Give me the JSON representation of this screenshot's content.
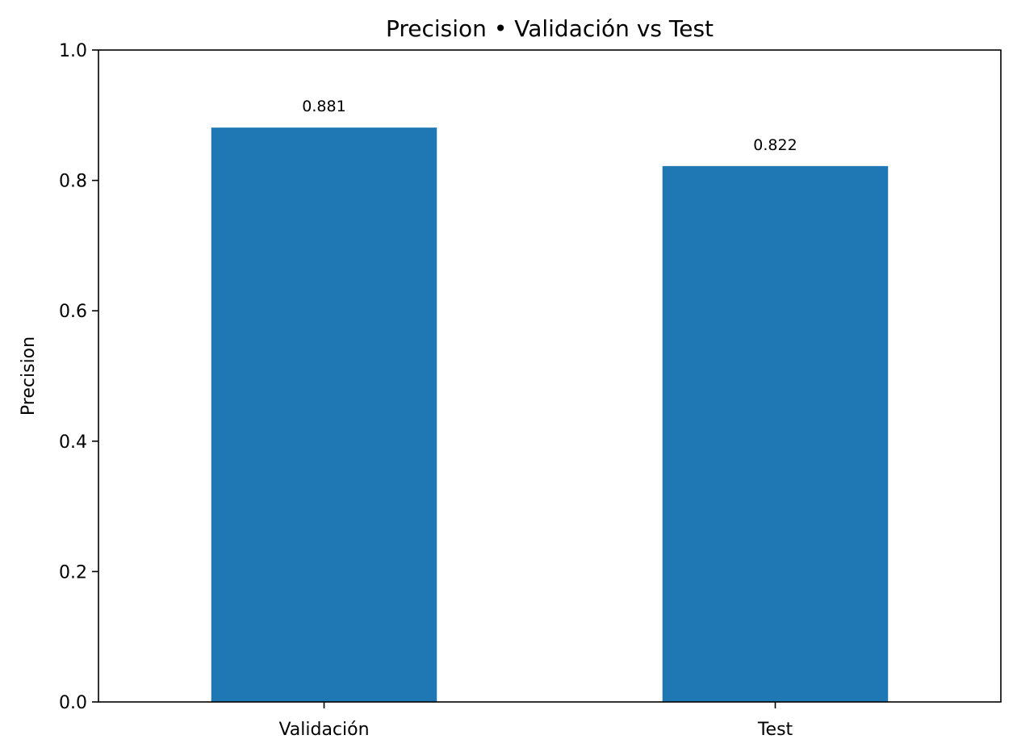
{
  "chart_data": {
    "type": "bar",
    "title": "Precision • Validación vs Test",
    "xlabel": "",
    "ylabel": "Precision",
    "categories": [
      "Validación",
      "Test"
    ],
    "values": [
      0.881,
      0.822
    ],
    "value_labels": [
      "0.881",
      "0.822"
    ],
    "ylim": [
      0,
      1
    ],
    "yticks": [
      0.0,
      0.2,
      0.4,
      0.6,
      0.8,
      1.0
    ],
    "ytick_labels": [
      "0.0",
      "0.2",
      "0.4",
      "0.6",
      "0.8",
      "1.0"
    ],
    "bar_color": "#1f77b4",
    "grid": false,
    "legend": "none"
  }
}
